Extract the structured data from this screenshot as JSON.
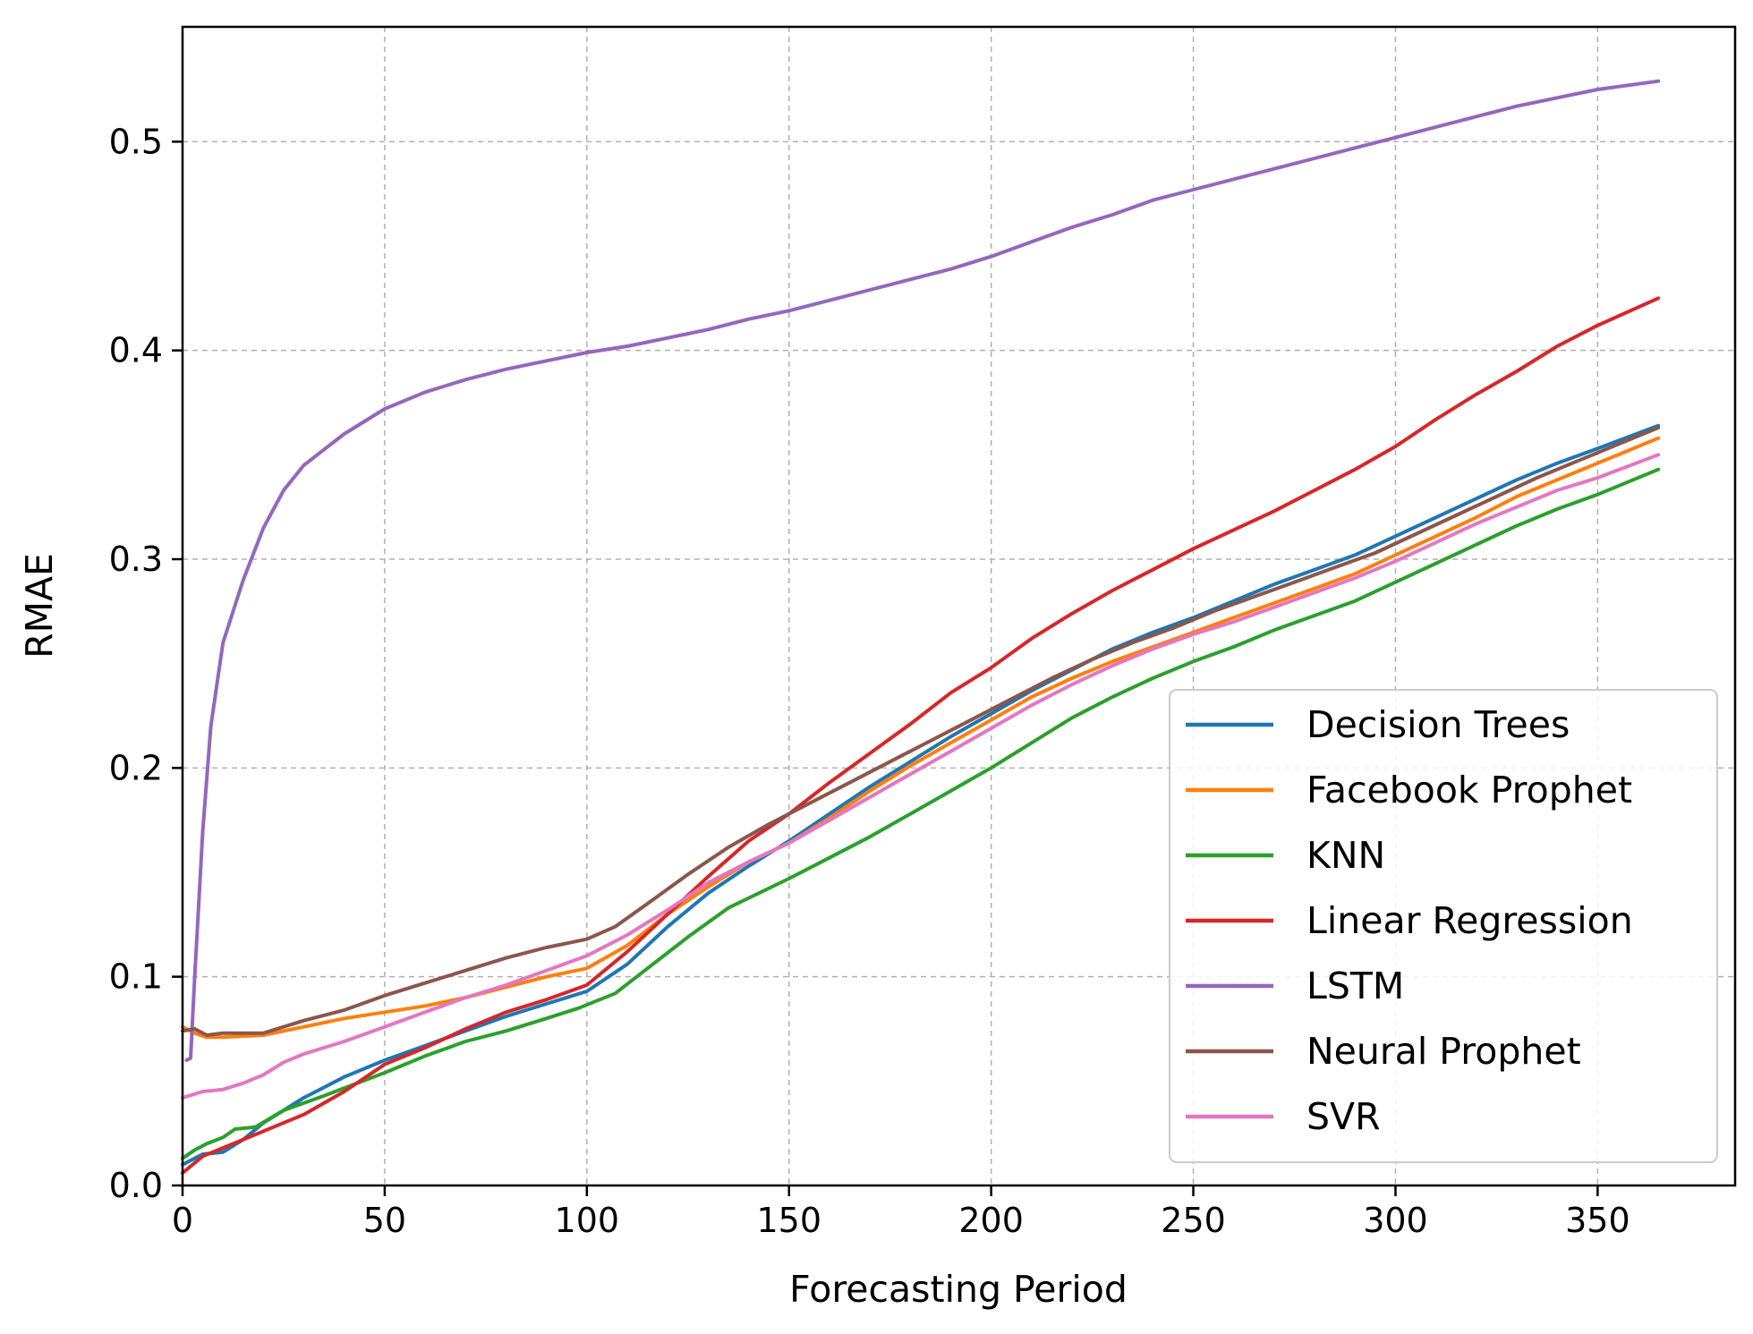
{
  "chart_data": {
    "type": "line",
    "title": "",
    "xlabel": "Forecasting Period",
    "ylabel": "RMAE",
    "xlim": [
      0,
      384
    ],
    "ylim": [
      0,
      0.555
    ],
    "xticks": [
      0,
      50,
      100,
      150,
      200,
      250,
      300,
      350
    ],
    "yticks": [
      0.0,
      0.1,
      0.2,
      0.3,
      0.4,
      0.5
    ],
    "ytick_labels": [
      "0.0",
      "0.1",
      "0.2",
      "0.3",
      "0.4",
      "0.5"
    ],
    "grid": true,
    "legend_position": "lower-right",
    "series": [
      {
        "name": "Decision Trees",
        "color": "#1f77b4",
        "points": [
          [
            0,
            0.01
          ],
          [
            5,
            0.015
          ],
          [
            10,
            0.016
          ],
          [
            15,
            0.022
          ],
          [
            20,
            0.03
          ],
          [
            30,
            0.042
          ],
          [
            40,
            0.052
          ],
          [
            50,
            0.06
          ],
          [
            60,
            0.067
          ],
          [
            70,
            0.074
          ],
          [
            80,
            0.081
          ],
          [
            90,
            0.087
          ],
          [
            100,
            0.093
          ],
          [
            110,
            0.106
          ],
          [
            120,
            0.124
          ],
          [
            130,
            0.14
          ],
          [
            140,
            0.153
          ],
          [
            150,
            0.165
          ],
          [
            160,
            0.178
          ],
          [
            170,
            0.191
          ],
          [
            180,
            0.203
          ],
          [
            190,
            0.215
          ],
          [
            200,
            0.226
          ],
          [
            210,
            0.237
          ],
          [
            220,
            0.247
          ],
          [
            230,
            0.257
          ],
          [
            240,
            0.265
          ],
          [
            250,
            0.272
          ],
          [
            260,
            0.28
          ],
          [
            270,
            0.288
          ],
          [
            280,
            0.295
          ],
          [
            290,
            0.302
          ],
          [
            300,
            0.311
          ],
          [
            310,
            0.32
          ],
          [
            320,
            0.329
          ],
          [
            330,
            0.338
          ],
          [
            340,
            0.346
          ],
          [
            350,
            0.353
          ],
          [
            365,
            0.364
          ]
        ]
      },
      {
        "name": "Facebook Prophet",
        "color": "#ff7f0e",
        "points": [
          [
            0,
            0.076
          ],
          [
            3,
            0.073
          ],
          [
            6,
            0.071
          ],
          [
            10,
            0.071
          ],
          [
            20,
            0.072
          ],
          [
            30,
            0.076
          ],
          [
            40,
            0.08
          ],
          [
            50,
            0.083
          ],
          [
            60,
            0.086
          ],
          [
            70,
            0.09
          ],
          [
            80,
            0.095
          ],
          [
            90,
            0.1
          ],
          [
            100,
            0.104
          ],
          [
            110,
            0.115
          ],
          [
            120,
            0.13
          ],
          [
            130,
            0.143
          ],
          [
            140,
            0.155
          ],
          [
            150,
            0.164
          ],
          [
            160,
            0.176
          ],
          [
            170,
            0.189
          ],
          [
            180,
            0.201
          ],
          [
            190,
            0.212
          ],
          [
            200,
            0.223
          ],
          [
            210,
            0.234
          ],
          [
            220,
            0.243
          ],
          [
            230,
            0.251
          ],
          [
            240,
            0.258
          ],
          [
            250,
            0.265
          ],
          [
            260,
            0.272
          ],
          [
            270,
            0.279
          ],
          [
            280,
            0.286
          ],
          [
            290,
            0.293
          ],
          [
            300,
            0.302
          ],
          [
            310,
            0.311
          ],
          [
            320,
            0.32
          ],
          [
            330,
            0.33
          ],
          [
            340,
            0.338
          ],
          [
            350,
            0.346
          ],
          [
            365,
            0.358
          ]
        ]
      },
      {
        "name": "KNN",
        "color": "#2ca02c",
        "points": [
          [
            0,
            0.013
          ],
          [
            3,
            0.017
          ],
          [
            6,
            0.02
          ],
          [
            10,
            0.023
          ],
          [
            13,
            0.027
          ],
          [
            18,
            0.028
          ],
          [
            25,
            0.036
          ],
          [
            35,
            0.043
          ],
          [
            50,
            0.054
          ],
          [
            60,
            0.062
          ],
          [
            70,
            0.069
          ],
          [
            80,
            0.074
          ],
          [
            90,
            0.08
          ],
          [
            98,
            0.085
          ],
          [
            107,
            0.092
          ],
          [
            115,
            0.104
          ],
          [
            125,
            0.119
          ],
          [
            135,
            0.133
          ],
          [
            150,
            0.147
          ],
          [
            160,
            0.157
          ],
          [
            170,
            0.167
          ],
          [
            180,
            0.178
          ],
          [
            190,
            0.189
          ],
          [
            200,
            0.2
          ],
          [
            210,
            0.212
          ],
          [
            220,
            0.224
          ],
          [
            230,
            0.234
          ],
          [
            240,
            0.243
          ],
          [
            250,
            0.251
          ],
          [
            260,
            0.258
          ],
          [
            270,
            0.266
          ],
          [
            280,
            0.273
          ],
          [
            290,
            0.28
          ],
          [
            300,
            0.289
          ],
          [
            310,
            0.298
          ],
          [
            320,
            0.307
          ],
          [
            330,
            0.316
          ],
          [
            340,
            0.324
          ],
          [
            350,
            0.331
          ],
          [
            365,
            0.343
          ]
        ]
      },
      {
        "name": "Linear Regression",
        "color": "#d62728",
        "points": [
          [
            0,
            0.006
          ],
          [
            5,
            0.014
          ],
          [
            10,
            0.018
          ],
          [
            15,
            0.022
          ],
          [
            20,
            0.026
          ],
          [
            30,
            0.034
          ],
          [
            40,
            0.045
          ],
          [
            50,
            0.058
          ],
          [
            60,
            0.066
          ],
          [
            70,
            0.075
          ],
          [
            80,
            0.083
          ],
          [
            90,
            0.089
          ],
          [
            100,
            0.096
          ],
          [
            110,
            0.112
          ],
          [
            120,
            0.13
          ],
          [
            130,
            0.148
          ],
          [
            140,
            0.165
          ],
          [
            150,
            0.178
          ],
          [
            160,
            0.193
          ],
          [
            170,
            0.207
          ],
          [
            180,
            0.221
          ],
          [
            190,
            0.236
          ],
          [
            200,
            0.248
          ],
          [
            210,
            0.262
          ],
          [
            220,
            0.274
          ],
          [
            230,
            0.285
          ],
          [
            240,
            0.295
          ],
          [
            250,
            0.305
          ],
          [
            260,
            0.314
          ],
          [
            270,
            0.323
          ],
          [
            280,
            0.333
          ],
          [
            290,
            0.343
          ],
          [
            300,
            0.354
          ],
          [
            310,
            0.367
          ],
          [
            320,
            0.379
          ],
          [
            330,
            0.39
          ],
          [
            340,
            0.402
          ],
          [
            350,
            0.412
          ],
          [
            365,
            0.425
          ]
        ]
      },
      {
        "name": "LSTM",
        "color": "#9467bd",
        "points": [
          [
            1,
            0.06
          ],
          [
            2,
            0.061
          ],
          [
            3,
            0.1
          ],
          [
            5,
            0.17
          ],
          [
            7,
            0.22
          ],
          [
            10,
            0.26
          ],
          [
            15,
            0.29
          ],
          [
            20,
            0.315
          ],
          [
            25,
            0.333
          ],
          [
            30,
            0.345
          ],
          [
            40,
            0.36
          ],
          [
            50,
            0.372
          ],
          [
            60,
            0.38
          ],
          [
            70,
            0.386
          ],
          [
            80,
            0.391
          ],
          [
            90,
            0.395
          ],
          [
            100,
            0.399
          ],
          [
            110,
            0.402
          ],
          [
            120,
            0.406
          ],
          [
            130,
            0.41
          ],
          [
            140,
            0.415
          ],
          [
            150,
            0.419
          ],
          [
            160,
            0.424
          ],
          [
            170,
            0.429
          ],
          [
            180,
            0.434
          ],
          [
            190,
            0.439
          ],
          [
            200,
            0.445
          ],
          [
            210,
            0.452
          ],
          [
            220,
            0.459
          ],
          [
            230,
            0.465
          ],
          [
            240,
            0.472
          ],
          [
            250,
            0.477
          ],
          [
            260,
            0.482
          ],
          [
            270,
            0.487
          ],
          [
            280,
            0.492
          ],
          [
            290,
            0.497
          ],
          [
            300,
            0.502
          ],
          [
            310,
            0.507
          ],
          [
            320,
            0.512
          ],
          [
            330,
            0.517
          ],
          [
            340,
            0.521
          ],
          [
            350,
            0.525
          ],
          [
            365,
            0.529
          ]
        ]
      },
      {
        "name": "Neural Prophet",
        "color": "#8c564b",
        "points": [
          [
            0,
            0.074
          ],
          [
            3,
            0.075
          ],
          [
            6,
            0.072
          ],
          [
            10,
            0.073
          ],
          [
            20,
            0.073
          ],
          [
            30,
            0.079
          ],
          [
            40,
            0.084
          ],
          [
            50,
            0.091
          ],
          [
            60,
            0.097
          ],
          [
            70,
            0.103
          ],
          [
            80,
            0.109
          ],
          [
            90,
            0.114
          ],
          [
            100,
            0.118
          ],
          [
            107,
            0.124
          ],
          [
            115,
            0.135
          ],
          [
            125,
            0.149
          ],
          [
            135,
            0.162
          ],
          [
            145,
            0.173
          ],
          [
            155,
            0.183
          ],
          [
            165,
            0.193
          ],
          [
            175,
            0.203
          ],
          [
            185,
            0.213
          ],
          [
            195,
            0.223
          ],
          [
            205,
            0.233
          ],
          [
            215,
            0.243
          ],
          [
            225,
            0.252
          ],
          [
            235,
            0.26
          ],
          [
            245,
            0.267
          ],
          [
            255,
            0.275
          ],
          [
            265,
            0.282
          ],
          [
            275,
            0.289
          ],
          [
            285,
            0.296
          ],
          [
            295,
            0.303
          ],
          [
            305,
            0.312
          ],
          [
            315,
            0.321
          ],
          [
            325,
            0.33
          ],
          [
            335,
            0.339
          ],
          [
            345,
            0.347
          ],
          [
            355,
            0.355
          ],
          [
            365,
            0.363
          ]
        ]
      },
      {
        "name": "SVR",
        "color": "#e377c2",
        "points": [
          [
            0,
            0.042
          ],
          [
            5,
            0.045
          ],
          [
            10,
            0.046
          ],
          [
            15,
            0.049
          ],
          [
            20,
            0.053
          ],
          [
            25,
            0.059
          ],
          [
            30,
            0.063
          ],
          [
            40,
            0.069
          ],
          [
            50,
            0.076
          ],
          [
            60,
            0.083
          ],
          [
            70,
            0.09
          ],
          [
            80,
            0.096
          ],
          [
            90,
            0.103
          ],
          [
            100,
            0.11
          ],
          [
            110,
            0.12
          ],
          [
            120,
            0.132
          ],
          [
            130,
            0.145
          ],
          [
            140,
            0.155
          ],
          [
            150,
            0.164
          ],
          [
            160,
            0.175
          ],
          [
            170,
            0.186
          ],
          [
            180,
            0.197
          ],
          [
            190,
            0.208
          ],
          [
            200,
            0.219
          ],
          [
            210,
            0.23
          ],
          [
            220,
            0.24
          ],
          [
            230,
            0.249
          ],
          [
            240,
            0.257
          ],
          [
            250,
            0.264
          ],
          [
            260,
            0.27
          ],
          [
            270,
            0.277
          ],
          [
            280,
            0.284
          ],
          [
            290,
            0.291
          ],
          [
            300,
            0.299
          ],
          [
            310,
            0.308
          ],
          [
            320,
            0.317
          ],
          [
            330,
            0.325
          ],
          [
            340,
            0.333
          ],
          [
            350,
            0.339
          ],
          [
            365,
            0.35
          ]
        ]
      }
    ]
  }
}
